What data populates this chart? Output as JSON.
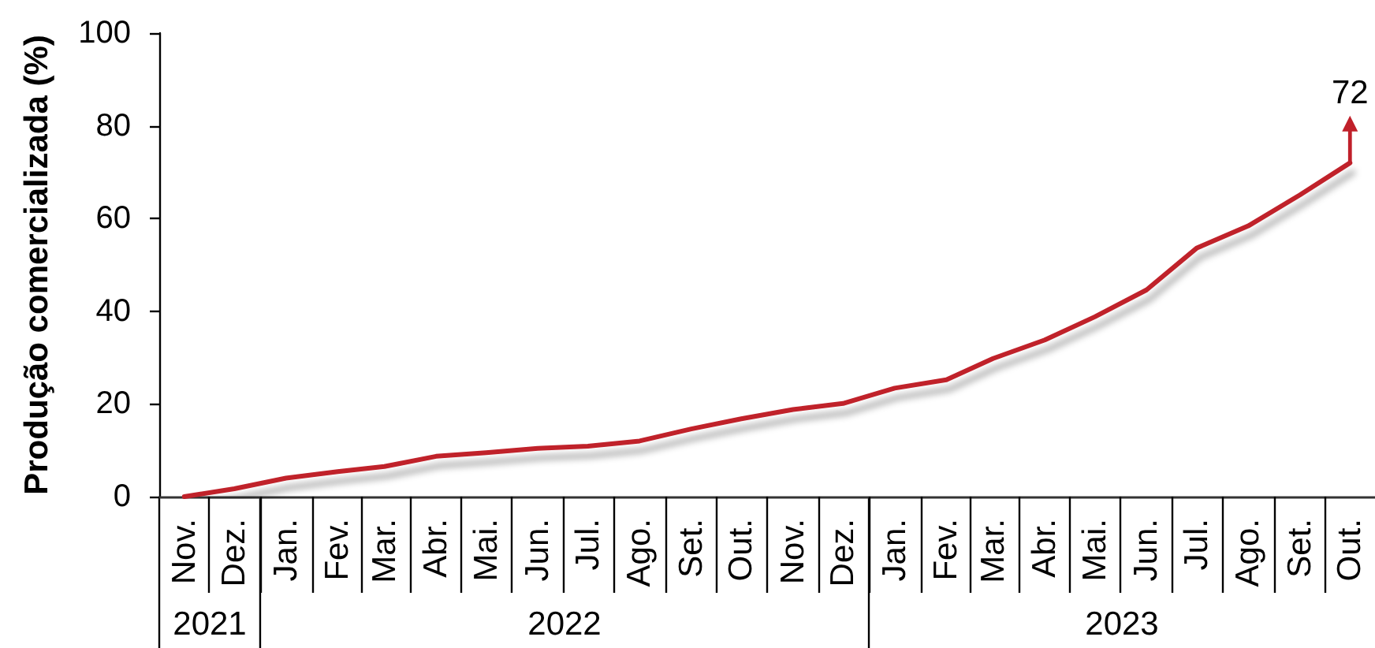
{
  "chart_data": {
    "type": "line",
    "ylabel": "Produção comercializada (%)",
    "x": [
      "2021-11",
      "2021-12",
      "2022-01",
      "2022-02",
      "2022-03",
      "2022-04",
      "2022-05",
      "2022-06",
      "2022-07",
      "2022-08",
      "2022-09",
      "2022-10",
      "2022-11",
      "2022-12",
      "2023-01",
      "2023-02",
      "2023-03",
      "2023-04",
      "2023-05",
      "2023-06",
      "2023-07",
      "2023-08",
      "2023-09",
      "2023-10"
    ],
    "values": [
      0,
      1.7,
      4,
      5.4,
      6.5,
      8.7,
      9.5,
      10.4,
      10.9,
      12,
      14.6,
      16.8,
      18.8,
      20.1,
      23.4,
      25.2,
      29.8,
      33.8,
      38.8,
      44.6,
      53.6,
      58.4,
      65.1,
      72
    ],
    "value_labels": [
      null,
      null,
      null,
      null,
      null,
      null,
      null,
      null,
      null,
      null,
      null,
      null,
      null,
      null,
      null,
      null,
      null,
      null,
      null,
      null,
      null,
      null,
      null,
      "72"
    ],
    "color": "#c0202a",
    "marker": "none",
    "xlim": [
      "2021-10-17",
      "2023-10-16"
    ],
    "xticks": [
      {
        "value": "2021-11",
        "label": "Nov."
      },
      {
        "value": "2021-12",
        "label": "Dez."
      },
      {
        "value": "2022-01",
        "label": "Jan."
      },
      {
        "value": "2022-02",
        "label": "Fev."
      },
      {
        "value": "2022-03",
        "label": "Mar."
      },
      {
        "value": "2022-04",
        "label": "Abr."
      },
      {
        "value": "2022-05",
        "label": "Mai."
      },
      {
        "value": "2022-06",
        "label": "Jun."
      },
      {
        "value": "2022-07",
        "label": "Jul."
      },
      {
        "value": "2022-08",
        "label": "Ago."
      },
      {
        "value": "2022-09",
        "label": "Set."
      },
      {
        "value": "2022-10",
        "label": "Out."
      },
      {
        "value": "2022-11",
        "label": "Nov."
      },
      {
        "value": "2022-12",
        "label": "Dez."
      },
      {
        "value": "2023-01",
        "label": "Jan."
      },
      {
        "value": "2023-02",
        "label": "Fev."
      },
      {
        "value": "2023-03",
        "label": "Mar."
      },
      {
        "value": "2023-04",
        "label": "Abr."
      },
      {
        "value": "2023-05",
        "label": "Mai."
      },
      {
        "value": "2023-06",
        "label": "Jun."
      },
      {
        "value": "2023-07",
        "label": "Jul."
      },
      {
        "value": "2023-08",
        "label": "Ago."
      },
      {
        "value": "2023-09",
        "label": "Set."
      },
      {
        "value": "2023-10",
        "label": "Out."
      }
    ],
    "ylim": [
      0,
      100
    ],
    "yticks": [
      0,
      20,
      40,
      60,
      80,
      100
    ],
    "annotations": [
      "2021",
      "2022",
      "2023"
    ]
  }
}
